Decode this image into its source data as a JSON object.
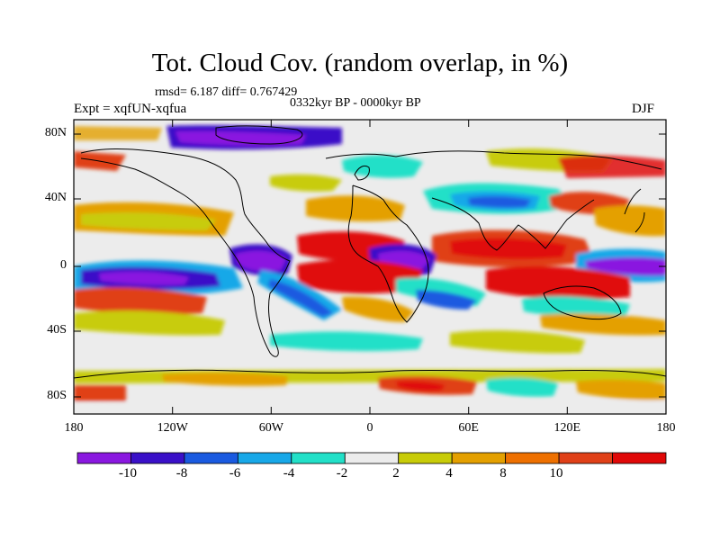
{
  "header": {
    "title": "Tot. Cloud Cov. (random overlap, in %)",
    "stats": "rmsd= 6.187 diff= 0.767429",
    "period": "0332kyr BP - 0000kyr BP",
    "experiment": "Expt = xqfUN-xqfua",
    "season": "DJF"
  },
  "axes": {
    "lat_ticks": [
      "80N",
      "40N",
      "0",
      "40S",
      "80S"
    ],
    "lon_ticks": [
      "180",
      "120W",
      "60W",
      "0",
      "60E",
      "120E",
      "180"
    ]
  },
  "colorbar": {
    "labels": [
      "-10",
      "-8",
      "-6",
      "-4",
      "-2",
      "2",
      "4",
      "8",
      "10"
    ],
    "colors": [
      "#8a18e0",
      "#3a10c8",
      "#1a5ae0",
      "#18a8e8",
      "#22e0c8",
      "#ececec",
      "#c8cc08",
      "#e4a000",
      "#ee7000",
      "#e04018",
      "#e00808"
    ]
  }
}
